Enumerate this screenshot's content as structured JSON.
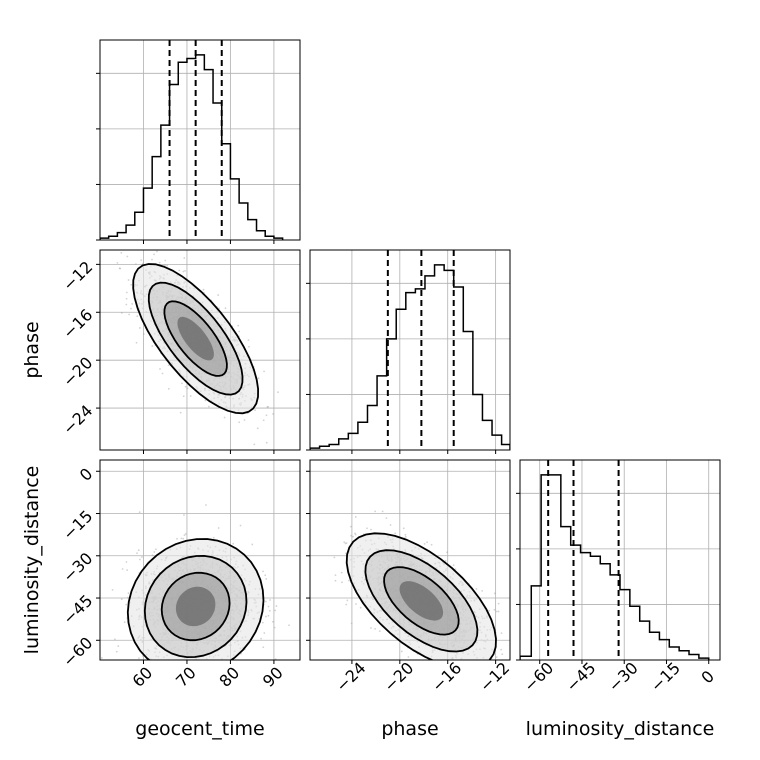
{
  "chart_data": {
    "type": "corner",
    "parameters": [
      "geocent_time",
      "phase",
      "luminosity_distance"
    ],
    "grid": true,
    "panels": [
      {
        "kind": "histogram",
        "param": "geocent_time",
        "xlim": [
          50,
          96
        ],
        "ylim": [
          0,
          1.08
        ],
        "bins": [
          50,
          52,
          54,
          56,
          58,
          60,
          62,
          64,
          66,
          68,
          70,
          72,
          74,
          76,
          78,
          80,
          82,
          84,
          86,
          88,
          90,
          92
        ],
        "counts": [
          0.01,
          0.02,
          0.04,
          0.08,
          0.15,
          0.28,
          0.45,
          0.62,
          0.84,
          0.96,
          0.98,
          1.0,
          0.92,
          0.74,
          0.52,
          0.33,
          0.2,
          0.11,
          0.05,
          0.02,
          0.01
        ],
        "quantiles": [
          66,
          72,
          78
        ],
        "xticks": [
          60,
          70,
          80,
          90
        ]
      },
      {
        "kind": "histogram",
        "param": "phase",
        "xlim": [
          -27.5,
          -10.8
        ],
        "ylim": [
          0,
          1.08
        ],
        "bins": [
          -27.5,
          -26.7,
          -25.9,
          -25.1,
          -24.3,
          -23.5,
          -22.7,
          -21.9,
          -21.1,
          -20.3,
          -19.5,
          -18.7,
          -17.9,
          -17.1,
          -16.3,
          -15.5,
          -14.7,
          -13.9,
          -13.1,
          -12.3,
          -11.5,
          -10.8
        ],
        "counts": [
          0.01,
          0.02,
          0.03,
          0.06,
          0.09,
          0.15,
          0.24,
          0.4,
          0.6,
          0.76,
          0.85,
          0.87,
          0.94,
          1.0,
          0.97,
          0.88,
          0.64,
          0.3,
          0.16,
          0.08,
          0.03
        ],
        "quantiles": [
          -21,
          -18.2,
          -15.5
        ],
        "xticks": [
          -24,
          -20,
          -16,
          -12
        ]
      },
      {
        "kind": "histogram",
        "param": "luminosity_distance",
        "xlim": [
          -67,
          4
        ],
        "ylim": [
          0,
          1.08
        ],
        "bins": [
          -67,
          -63,
          -59.5,
          -56,
          -52.5,
          -49,
          -45.5,
          -42,
          -38.5,
          -35,
          -31.5,
          -28,
          -24.5,
          -21,
          -17.5,
          -14,
          -10.5,
          -7,
          -3.5,
          0
        ],
        "counts": [
          0.02,
          0.4,
          1.0,
          1.0,
          0.72,
          0.62,
          0.58,
          0.56,
          0.52,
          0.46,
          0.38,
          0.29,
          0.21,
          0.15,
          0.11,
          0.07,
          0.05,
          0.03,
          0.01
        ],
        "quantiles": [
          -57,
          -48,
          -32
        ],
        "xticks": [
          -60,
          -45,
          -30,
          -15,
          0
        ]
      },
      {
        "kind": "2d",
        "x": "geocent_time",
        "y": "phase",
        "xlim": [
          50,
          96
        ],
        "ylim": [
          -27.5,
          -10.8
        ],
        "center": [
          72,
          -18.2
        ],
        "spread": [
          6,
          2.6
        ],
        "correlation": -0.72,
        "xticks": [
          60,
          70,
          80,
          90
        ],
        "yticks": [
          -12,
          -16,
          -20,
          -24
        ]
      },
      {
        "kind": "2d",
        "x": "geocent_time",
        "y": "luminosity_distance",
        "xlim": [
          50,
          96
        ],
        "ylim": [
          -67,
          4
        ],
        "center": [
          72,
          -48
        ],
        "spread": [
          6.5,
          10
        ],
        "correlation": 0.1,
        "xticks": [
          60,
          70,
          80,
          90
        ],
        "yticks": [
          0,
          -15,
          -30,
          -45,
          -60
        ]
      },
      {
        "kind": "2d",
        "x": "phase",
        "y": "luminosity_distance",
        "xlim": [
          -27.5,
          -10.8
        ],
        "ylim": [
          -67,
          4
        ],
        "center": [
          -18.2,
          -46
        ],
        "spread": [
          2.6,
          10
        ],
        "correlation": -0.6,
        "xticks": [
          -24,
          -20,
          -16,
          -12
        ],
        "yticks": [
          0,
          -15,
          -30,
          -45,
          -60
        ]
      }
    ],
    "colors": {
      "line": "#000000",
      "grid": "#b0b0b0",
      "scatter": "#a8a8a8"
    }
  }
}
